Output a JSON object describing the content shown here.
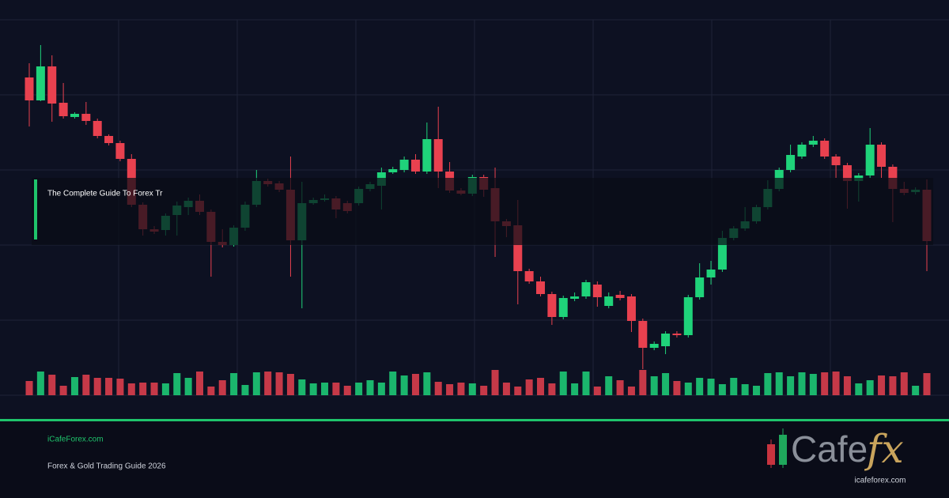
{
  "chart_data": {
    "type": "candlestick",
    "ylim": [
      0,
      475
    ],
    "up_color": "#1fd37a",
    "down_color": "#e8414f",
    "ohlc": [
      [
        402,
        420,
        340,
        373
      ],
      [
        373,
        443,
        372,
        416
      ],
      [
        416,
        430,
        346,
        369
      ],
      [
        370,
        395,
        350,
        353
      ],
      [
        352,
        358,
        350,
        356
      ],
      [
        356,
        371,
        342,
        347
      ],
      [
        347,
        350,
        325,
        328
      ],
      [
        328,
        330,
        316,
        319
      ],
      [
        319,
        322,
        296,
        299
      ],
      [
        299,
        305,
        238,
        241
      ],
      [
        241,
        244,
        202,
        210
      ],
      [
        210,
        214,
        204,
        207
      ],
      [
        209,
        230,
        202,
        227
      ],
      [
        228,
        245,
        202,
        240
      ],
      [
        238,
        250,
        228,
        246
      ],
      [
        246,
        254,
        228,
        232
      ],
      [
        232,
        235,
        150,
        194
      ],
      [
        194,
        210,
        187,
        190
      ],
      [
        190,
        215,
        188,
        212
      ],
      [
        212,
        245,
        208,
        241
      ],
      [
        241,
        285,
        238,
        271
      ],
      [
        271,
        274,
        264,
        267
      ],
      [
        268,
        271,
        257,
        260
      ],
      [
        260,
        302,
        150,
        196
      ],
      [
        196,
        270,
        110,
        243
      ],
      [
        243,
        250,
        241,
        247
      ],
      [
        247,
        254,
        245,
        249
      ],
      [
        249,
        252,
        224,
        235
      ],
      [
        243,
        246,
        230,
        233
      ],
      [
        243,
        264,
        240,
        261
      ],
      [
        261,
        270,
        258,
        267
      ],
      [
        265,
        288,
        235,
        282
      ],
      [
        282,
        289,
        280,
        286
      ],
      [
        285,
        302,
        282,
        298
      ],
      [
        298,
        305,
        280,
        283
      ],
      [
        283,
        345,
        280,
        324
      ],
      [
        324,
        365,
        262,
        283
      ],
      [
        283,
        295,
        256,
        259
      ],
      [
        259,
        262,
        253,
        255
      ],
      [
        255,
        279,
        252,
        276
      ],
      [
        276,
        279,
        251,
        260
      ],
      [
        262,
        288,
        175,
        220
      ],
      [
        220,
        223,
        200,
        214
      ],
      [
        215,
        247,
        115,
        157
      ],
      [
        157,
        160,
        141,
        144
      ],
      [
        144,
        150,
        125,
        128
      ],
      [
        128,
        131,
        89,
        99
      ],
      [
        99,
        126,
        96,
        123
      ],
      [
        122,
        130,
        119,
        125
      ],
      [
        125,
        146,
        122,
        143
      ],
      [
        140,
        144,
        112,
        124
      ],
      [
        113,
        130,
        110,
        125
      ],
      [
        127,
        132,
        120,
        123
      ],
      [
        125,
        128,
        80,
        94
      ],
      [
        94,
        97,
        33,
        60
      ],
      [
        60,
        68,
        57,
        65
      ],
      [
        62,
        81,
        52,
        78
      ],
      [
        78,
        81,
        73,
        76
      ],
      [
        76,
        127,
        73,
        124
      ],
      [
        124,
        167,
        121,
        149
      ],
      [
        149,
        170,
        140,
        159
      ],
      [
        159,
        208,
        156,
        199
      ],
      [
        199,
        214,
        196,
        211
      ],
      [
        211,
        238,
        208,
        220
      ],
      [
        220,
        241,
        217,
        238
      ],
      [
        238,
        272,
        235,
        261
      ],
      [
        261,
        288,
        258,
        285
      ],
      [
        285,
        317,
        282,
        304
      ],
      [
        302,
        320,
        299,
        317
      ],
      [
        317,
        328,
        314,
        322
      ],
      [
        322,
        325,
        299,
        302
      ],
      [
        302,
        305,
        275,
        291
      ],
      [
        291,
        294,
        236,
        271
      ],
      [
        271,
        281,
        245,
        278
      ],
      [
        278,
        338,
        275,
        317
      ],
      [
        317,
        320,
        275,
        289
      ],
      [
        289,
        292,
        219,
        261
      ],
      [
        261,
        270,
        253,
        256
      ],
      [
        257,
        263,
        254,
        260
      ],
      [
        260,
        273,
        157,
        195
      ]
    ],
    "volume": [
      18,
      30,
      26,
      12,
      23,
      26,
      22,
      22,
      21,
      15,
      16,
      16,
      15,
      28,
      22,
      30,
      11,
      19,
      28,
      13,
      29,
      30,
      29,
      27,
      20,
      15,
      16,
      16,
      12,
      16,
      19,
      16,
      30,
      25,
      27,
      29,
      17,
      14,
      16,
      15,
      12,
      32,
      16,
      11,
      20,
      22,
      15,
      30,
      15,
      30,
      11,
      24,
      19,
      11,
      32,
      24,
      28,
      18,
      16,
      22,
      21,
      14,
      22,
      14,
      12,
      28,
      29,
      24,
      29,
      27,
      29,
      30,
      24,
      15,
      19,
      25,
      24,
      29,
      12,
      28
    ]
  },
  "headline": "The Complete Guide To Forex Tr",
  "footer": {
    "site": "iCafeForex.com",
    "subtitle": "Forex & Gold Trading Guide 2026"
  },
  "logo": {
    "main": "Cafe",
    "accent": "fx",
    "url": "icafeforex.com"
  }
}
